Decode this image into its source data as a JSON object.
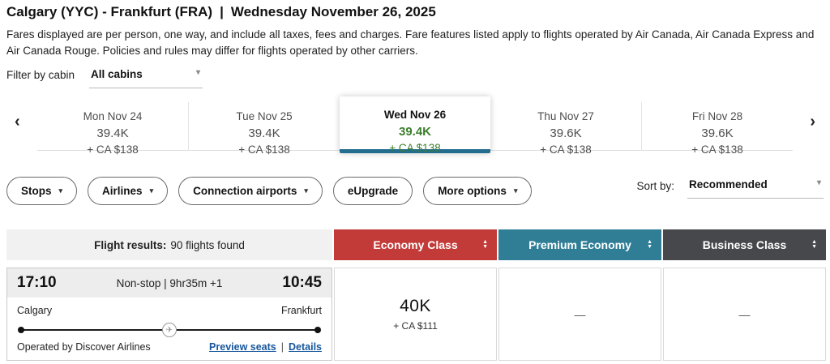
{
  "header": {
    "title_route": "Calgary (YYC) - Frankfurt (FRA)",
    "title_separator": "|",
    "title_date": "Wednesday November 26, 2025",
    "disclaimer": "Fares displayed are per person, one way, and include all taxes, fees and charges. Fare features listed apply to flights operated by Air Canada, Air Canada Express and Air Canada Rouge. Policies and rules may differ for flights operated by other carriers."
  },
  "cabin_filter": {
    "label": "Filter by cabin",
    "value": "All cabins"
  },
  "date_strip": {
    "days": [
      {
        "label": "Mon Nov 24",
        "miles": "39.4K",
        "price": "+ CA $138",
        "selected": false
      },
      {
        "label": "Tue Nov 25",
        "miles": "39.4K",
        "price": "+ CA $138",
        "selected": false
      },
      {
        "label": "Wed Nov 26",
        "miles": "39.4K",
        "price": "+ CA $138",
        "selected": true
      },
      {
        "label": "Thu Nov 27",
        "miles": "39.6K",
        "price": "+ CA $138",
        "selected": false
      },
      {
        "label": "Fri Nov 28",
        "miles": "39.6K",
        "price": "+ CA $138",
        "selected": false
      }
    ]
  },
  "filters": {
    "pills": [
      {
        "label": "Stops",
        "has_caret": true
      },
      {
        "label": "Airlines",
        "has_caret": true
      },
      {
        "label": "Connection airports",
        "has_caret": true
      },
      {
        "label": "eUpgrade",
        "has_caret": false
      },
      {
        "label": "More options",
        "has_caret": true
      }
    ],
    "sort": {
      "label": "Sort by:",
      "value": "Recommended"
    }
  },
  "results_header": {
    "summary_label": "Flight results:",
    "summary_value": "90 flights found",
    "columns": [
      {
        "label": "Economy Class",
        "color": "#c23b39"
      },
      {
        "label": "Premium Economy",
        "color": "#2f7e96"
      },
      {
        "label": "Business Class",
        "color": "#47484c"
      }
    ]
  },
  "flight": {
    "departure_time": "17:10",
    "route_info": "Non-stop | 9hr35m +1",
    "arrival_time": "10:45",
    "origin": "Calgary",
    "destination": "Frankfurt",
    "operated_by": "Operated by Discover Airlines",
    "preview_seats_label": "Preview seats",
    "details_label": "Details",
    "fares": [
      {
        "miles": "40K",
        "price": "+ CA $111"
      },
      {
        "dash": "—"
      },
      {
        "dash": "—"
      }
    ]
  },
  "icons": {
    "chevron_left": "‹",
    "chevron_right": "›",
    "caret_down": "▾",
    "sort_up": "▲",
    "sort_down": "▼",
    "plane": "✈",
    "link_separator": "|"
  },
  "colors": {
    "economy_header": "#c23b39",
    "premium_header": "#2f7e96",
    "business_header": "#47484c",
    "selected_tab_underline": "#236d8f",
    "selected_price_green": "#3c7e2c",
    "link_blue": "#15569c",
    "summary_bar_bg": "#f1f1f1",
    "time_strip_bg": "#ededed"
  }
}
